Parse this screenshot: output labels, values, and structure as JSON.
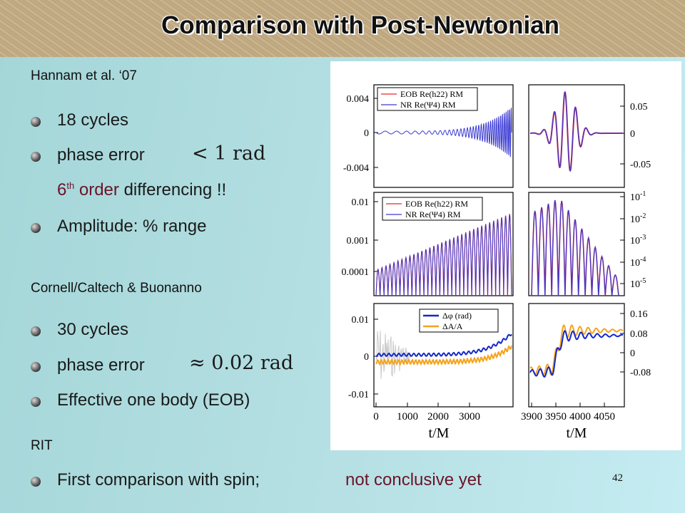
{
  "slide": {
    "title": "Comparison with Post-Newtonian",
    "page_number": "42",
    "sections": [
      {
        "heading": "Hannam et al. ‘07"
      },
      {
        "heading": "Cornell/Caltech & Buonanno"
      },
      {
        "heading": "RIT"
      }
    ],
    "bullets": {
      "b1": "18 cycles",
      "b2": "phase error",
      "b2_math": "< 1 rad",
      "b3_num": "6",
      "b3_sup": "th",
      "b3_order": " order",
      "b3_rest": " differencing !!",
      "b4": "Amplitude:  % range",
      "b5": "30 cycles",
      "b6": "phase error",
      "b6_math": "≈ 0.02 rad",
      "b7": "Effective one body (EOB)",
      "b8": "First comparison with spin;",
      "b8_red": "not conclusive yet"
    },
    "colors": {
      "accent_text": "#6b1428",
      "eob": "#e8262c",
      "nr": "#3a3ad4",
      "dphi": "#1428c8",
      "dA": "#f5a31c"
    }
  },
  "figure": {
    "panels": [
      {
        "position": "top-left",
        "yticks": [
          "0.004",
          "0",
          "-0.004"
        ],
        "legend": [
          "EOB Re(h22) RM",
          "NR  Re(Ψ4) RM"
        ]
      },
      {
        "position": "top-right",
        "yticks": [
          "0.05",
          "0",
          "-0.05"
        ]
      },
      {
        "position": "middle-left",
        "yticks": [
          "0.01",
          "0.001",
          "0.0001"
        ],
        "legend": [
          "EOB Re(h22) RM",
          "NR  Re(Ψ4) RM"
        ]
      },
      {
        "position": "middle-right",
        "yticks": [
          "10-1",
          "10-2",
          "10-3",
          "10-4",
          "10-5"
        ]
      },
      {
        "position": "bottom-left",
        "yticks": [
          "0.01",
          "0",
          "-0.01"
        ],
        "xticks": [
          "0",
          "1000",
          "2000",
          "3000"
        ],
        "xlabel": "t/M",
        "legend": [
          "Δφ (rad)",
          "ΔA/A"
        ]
      },
      {
        "position": "bottom-right",
        "yticks": [
          "0.16",
          "0.08",
          "0",
          "-0.08"
        ],
        "xticks": [
          "3900",
          "3950",
          "4000",
          "4050"
        ],
        "xlabel": "t/M"
      }
    ]
  }
}
